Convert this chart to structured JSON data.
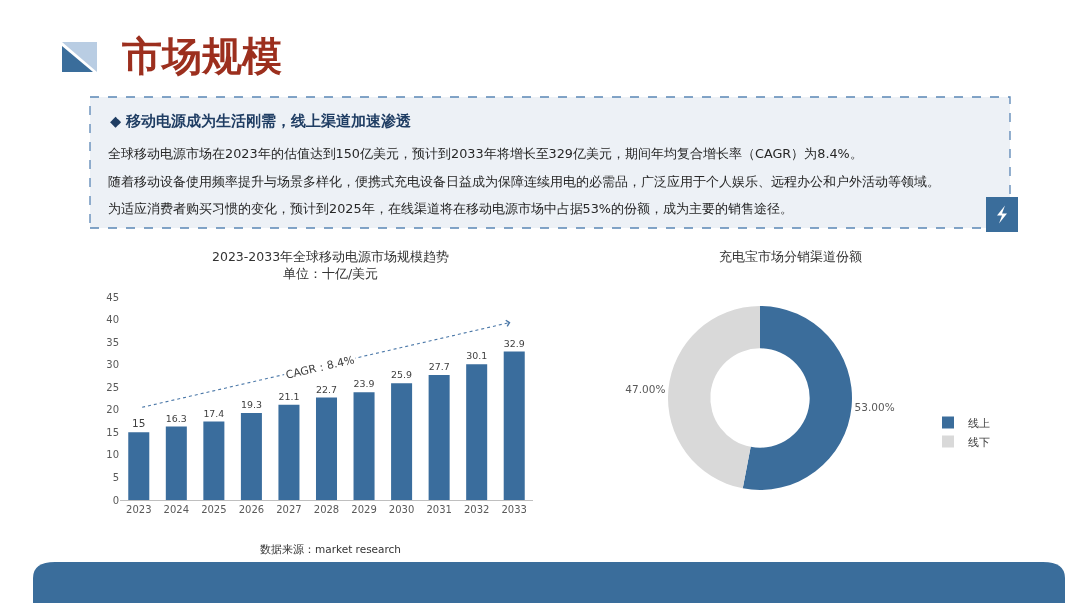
{
  "chart_data": [
    {
      "type": "other",
      "title": "市场规模",
      "subtitle": "◆ 移动电源成为生活刚需，线上渠道加速渗透",
      "annotations": [
        "全球移动电源市场在2023年的估值达到150亿美元，预计到2033年将增长至329亿美元，期间年均复合增长率（CAGR）为8.4%。",
        "随着移动设备使用频率提升与场景多样化，便携式充电设备日益成为保障连续用电的必需品，广泛应用于个人娱乐、远程办公和户外活动等领域。",
        "为适应消费者购买习惯的变化，预计到2025年，在线渠道将在移动电源市场中占据53%的份额，成为主要的销售途径。"
      ]
    },
    {
      "type": "bar",
      "title": "2023-2033年全球移动电源市场规模趋势",
      "subtitle": "单位：十亿/美元",
      "categories": [
        "2023",
        "2024",
        "2025",
        "2026",
        "2027",
        "2028",
        "2029",
        "2030",
        "2031",
        "2032",
        "2033"
      ],
      "values": [
        15,
        16.3,
        17.4,
        19.3,
        21.1,
        22.7,
        23.9,
        25.9,
        27.7,
        30.1,
        32.9
      ],
      "color": "#3a6d9d",
      "ylim": [
        0,
        45
      ],
      "yticks": [
        0,
        5,
        10,
        15,
        20,
        25,
        30,
        35,
        40,
        45
      ],
      "data_labels": true,
      "annotations": [
        "CAGR：8.4%",
        "数据来源：market research"
      ]
    },
    {
      "type": "donut",
      "title": "充电宝市场分销渠道份额",
      "categories": [
        "线上",
        "线下"
      ],
      "values": [
        53,
        47
      ],
      "colors": [
        "#3b6d9b",
        "#d9d9d9"
      ],
      "value_labels": [
        "53.00%",
        "47.00%"
      ],
      "legend": "right"
    }
  ]
}
